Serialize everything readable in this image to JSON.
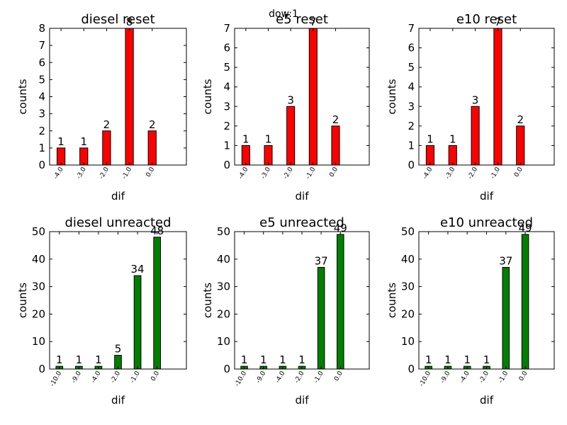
{
  "figure": {
    "suptitle": "dow:1"
  },
  "chart_data": [
    {
      "type": "bar",
      "title": "diesel reset",
      "xlabel": "dif",
      "ylabel": "counts",
      "categories": [
        "-4.0",
        "-3.0",
        "-2.0",
        "-1.0",
        "0.0"
      ],
      "values": [
        1,
        1,
        2,
        8,
        2
      ],
      "yticks": [
        0,
        1,
        2,
        3,
        4,
        5,
        6,
        7,
        8
      ],
      "ylim": [
        0,
        8
      ],
      "bar_color": "#ff0000"
    },
    {
      "type": "bar",
      "title": "e5 reset",
      "xlabel": "dif",
      "ylabel": "counts",
      "categories": [
        "-4.0",
        "-3.0",
        "-2.0",
        "-1.0",
        "0.0"
      ],
      "values": [
        1,
        1,
        3,
        7,
        2
      ],
      "yticks": [
        0,
        1,
        2,
        3,
        4,
        5,
        6,
        7
      ],
      "ylim": [
        0,
        7
      ],
      "bar_color": "#ff0000"
    },
    {
      "type": "bar",
      "title": "e10 reset",
      "xlabel": "dif",
      "ylabel": "counts",
      "categories": [
        "-4.0",
        "-3.0",
        "-2.0",
        "-1.0",
        "0.0"
      ],
      "values": [
        1,
        1,
        3,
        7,
        2
      ],
      "yticks": [
        0,
        1,
        2,
        3,
        4,
        5,
        6,
        7
      ],
      "ylim": [
        0,
        7
      ],
      "bar_color": "#ff0000"
    },
    {
      "type": "bar",
      "title": "diesel unreacted",
      "xlabel": "dif",
      "ylabel": "counts",
      "categories": [
        "-10.0",
        "-9.0",
        "-4.0",
        "-2.0",
        "-1.0",
        "0.0"
      ],
      "values": [
        1,
        1,
        1,
        5,
        34,
        48
      ],
      "yticks": [
        0,
        10,
        20,
        30,
        40,
        50
      ],
      "ylim": [
        0,
        50
      ],
      "bar_color": "#008000"
    },
    {
      "type": "bar",
      "title": "e5 unreacted",
      "xlabel": "dif",
      "ylabel": "counts",
      "categories": [
        "-10.0",
        "-9.0",
        "-4.0",
        "-2.0",
        "-1.0",
        "0.0"
      ],
      "values": [
        1,
        1,
        1,
        1,
        37,
        49
      ],
      "yticks": [
        0,
        10,
        20,
        30,
        40,
        50
      ],
      "ylim": [
        0,
        50
      ],
      "bar_color": "#008000"
    },
    {
      "type": "bar",
      "title": "e10 unreacted",
      "xlabel": "dif",
      "ylabel": "counts",
      "categories": [
        "-10.0",
        "-9.0",
        "-4.0",
        "-2.0",
        "-1.0",
        "0.0"
      ],
      "values": [
        1,
        1,
        1,
        1,
        37,
        49
      ],
      "yticks": [
        0,
        10,
        20,
        30,
        40,
        50
      ],
      "ylim": [
        0,
        50
      ],
      "bar_color": "#008000"
    }
  ]
}
